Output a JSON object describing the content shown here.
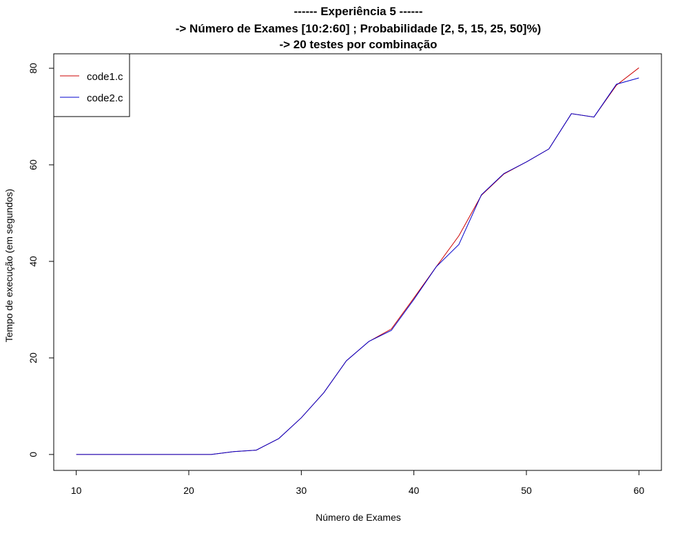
{
  "chart_data": {
    "type": "line",
    "title_lines": [
      "------ Experiência 5 ------",
      "-> Número de Exames [10:2:60] ; Probabilidade [2, 5, 15, 25, 50]%)",
      "-> 20 testes por combinação"
    ],
    "xlabel": "Número de Exames",
    "ylabel": "Tempo de execução (em segundos)",
    "xlim": [
      8,
      62
    ],
    "ylim": [
      -3.3,
      83
    ],
    "xticks": [
      10,
      20,
      30,
      40,
      50,
      60
    ],
    "yticks": [
      0,
      20,
      40,
      60,
      80
    ],
    "grid": false,
    "legend": "top-left",
    "x": [
      10,
      12,
      14,
      16,
      18,
      20,
      22,
      24,
      26,
      28,
      30,
      32,
      34,
      36,
      38,
      40,
      42,
      44,
      46,
      48,
      50,
      52,
      54,
      56,
      58,
      60
    ],
    "series": [
      {
        "name": "code1.c",
        "color": "#cc0000",
        "values": [
          0.0,
          0.0,
          0.0,
          0.0,
          0.0,
          0.0,
          0.0,
          0.6,
          0.9,
          3.3,
          7.6,
          12.8,
          19.4,
          23.4,
          26.0,
          32.4,
          38.9,
          45.3,
          53.7,
          58.1,
          60.6,
          63.3,
          70.6,
          69.9,
          76.5,
          80.1
        ]
      },
      {
        "name": "code2.c",
        "color": "#0000cc",
        "values": [
          0.0,
          0.0,
          0.0,
          0.0,
          0.0,
          0.0,
          0.0,
          0.6,
          0.9,
          3.3,
          7.6,
          12.8,
          19.4,
          23.4,
          25.7,
          32.1,
          38.9,
          43.5,
          53.8,
          58.2,
          60.6,
          63.3,
          70.6,
          69.9,
          76.7,
          78.0
        ]
      }
    ]
  }
}
